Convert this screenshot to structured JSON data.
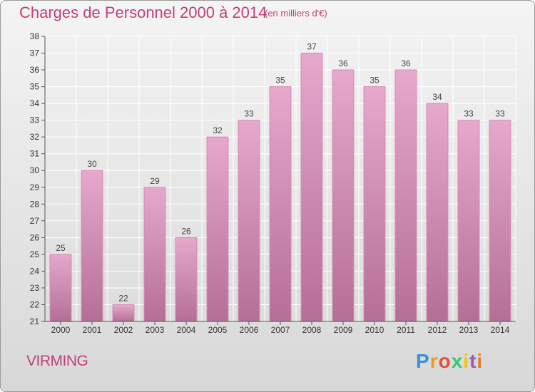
{
  "header": {
    "title": "Charges de Personnel 2000 à 2014",
    "subtitle": "(en milliers d'€)"
  },
  "footer": {
    "commune": "VIRMING",
    "logo_letters": [
      "P",
      "r",
      "o",
      "x",
      "i",
      "t",
      "i"
    ],
    "logo_colors": [
      "#3a8fd8",
      "#f39c12",
      "#e74c3c",
      "#2ecc71",
      "#f1c40f",
      "#9b59b6",
      "#e67e22"
    ]
  },
  "chart_data": {
    "type": "bar",
    "title": "Charges de Personnel 2000 à 2014",
    "subtitle": "(en milliers d'€)",
    "categories": [
      "2000",
      "2001",
      "2002",
      "2003",
      "2004",
      "2005",
      "2006",
      "2007",
      "2008",
      "2009",
      "2010",
      "2011",
      "2012",
      "2013",
      "2014"
    ],
    "values": [
      25,
      30,
      22,
      29,
      26,
      32,
      33,
      35,
      37,
      36,
      35,
      36,
      34,
      33,
      33
    ],
    "ylim": [
      21,
      38
    ],
    "yticks": [
      21,
      22,
      23,
      24,
      25,
      26,
      27,
      28,
      29,
      30,
      31,
      32,
      33,
      34,
      35,
      36,
      37,
      38
    ],
    "grid": true,
    "colors": {
      "bar_top": "#e6a8cc",
      "bar_bottom": "#b56f97",
      "grid": "#ffffff",
      "text": "#c0407a"
    }
  }
}
